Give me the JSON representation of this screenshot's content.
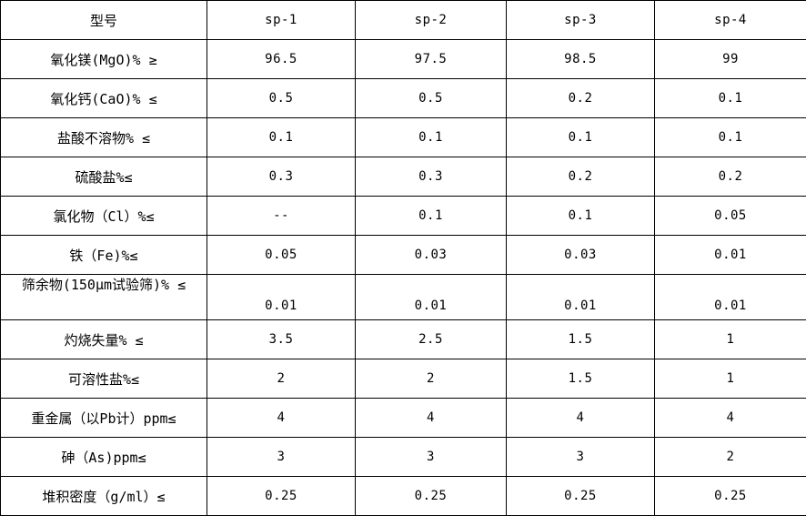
{
  "table": {
    "model_header": "型号",
    "models": [
      "sp-1",
      "sp-2",
      "sp-3",
      "sp-4"
    ],
    "rows": [
      {
        "label": "氧化镁(MgO)%  ≥",
        "values": [
          "96.5",
          "97.5",
          "98.5",
          "99"
        ]
      },
      {
        "label": "氧化钙(CaO)%  ≤",
        "values": [
          "0.5",
          "0.5",
          "0.2",
          "0.1"
        ]
      },
      {
        "label": "盐酸不溶物%  ≤",
        "values": [
          "0.1",
          "0.1",
          "0.1",
          "0.1"
        ]
      },
      {
        "label": "硫酸盐%≤",
        "values": [
          "0.3",
          "0.3",
          "0.2",
          "0.2"
        ]
      },
      {
        "label": "氯化物（Cl）%≤",
        "values": [
          "--",
          "0.1",
          "0.1",
          "0.05"
        ]
      },
      {
        "label": "铁（Fe)%≤",
        "values": [
          "0.05",
          "0.03",
          "0.03",
          "0.01"
        ]
      },
      {
        "label": "筛余物(150μm试验筛)%  ≤",
        "values": [
          "0.01",
          "0.01",
          "0.01",
          "0.01"
        ],
        "label_valign": "top",
        "values_valign": "bottom"
      },
      {
        "label": "灼烧失量%  ≤",
        "values": [
          "3.5",
          "2.5",
          "1.5",
          "1"
        ]
      },
      {
        "label": "可溶性盐%≤",
        "values": [
          "2",
          "2",
          "1.5",
          "1"
        ]
      },
      {
        "label": "重金属（以Pb计）ppm≤",
        "values": [
          "4",
          "4",
          "4",
          "4"
        ]
      },
      {
        "label": "砷（As)ppm≤",
        "values": [
          "3",
          "3",
          "3",
          "2"
        ]
      },
      {
        "label": "堆积密度（g/ml）≤",
        "values": [
          "0.25",
          "0.25",
          "0.25",
          "0.25"
        ]
      }
    ]
  },
  "colors": {
    "border": "#000000",
    "background": "#ffffff",
    "text": "#000000"
  }
}
